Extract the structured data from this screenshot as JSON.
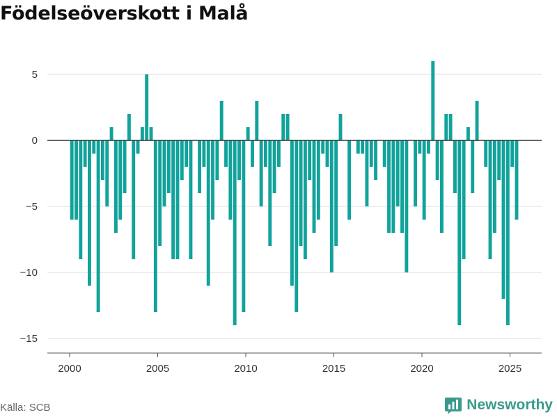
{
  "title": "Födelseöverskott i Malå",
  "source": "Källa: SCB",
  "brand": {
    "name": "Newsworthy",
    "icon": "bar-chart-logo-icon"
  },
  "colors": {
    "bar": "#11a39b",
    "zero_line": "#333333",
    "grid": "#dddddd",
    "brand": "#3a9a8e"
  },
  "chart_data": {
    "type": "bar",
    "title": "Födelseöverskott i Malå",
    "xlabel": "",
    "ylabel": "",
    "x_ticks": [
      "2000",
      "2005",
      "2010",
      "2015",
      "2020",
      "2025"
    ],
    "y_ticks": [
      "5",
      "0",
      "−5",
      "−10",
      "−15"
    ],
    "ylim": [
      -16,
      6.5
    ],
    "grid": "horizontal",
    "start_year": 2000,
    "x_step": "quarter",
    "values": [
      -6,
      -6,
      -9,
      -2,
      -11,
      -1,
      -13,
      -3,
      -5,
      1,
      -7,
      -6,
      -4,
      2,
      -9,
      -1,
      1,
      5,
      1,
      -13,
      -8,
      -5,
      -4,
      -9,
      -9,
      -3,
      -2,
      -9,
      0,
      -4,
      -2,
      -11,
      -6,
      -3,
      3,
      -2,
      -6,
      -14,
      -3,
      -13,
      1,
      -2,
      3,
      -5,
      -2,
      -8,
      -4,
      -2,
      2,
      2,
      -11,
      -13,
      -8,
      -9,
      -3,
      -7,
      -6,
      -1,
      -2,
      -10,
      -8,
      2,
      0,
      -6,
      0,
      -1,
      -1,
      -5,
      -2,
      -3,
      0,
      -2,
      -7,
      -7,
      -5,
      -7,
      -10,
      0,
      -5,
      -1,
      -6,
      -1,
      6,
      -3,
      -7,
      2,
      2,
      -4,
      -14,
      -9,
      1,
      -4,
      3,
      0,
      -2,
      -9,
      -7,
      -3,
      -12,
      -14,
      -2,
      -6
    ]
  }
}
